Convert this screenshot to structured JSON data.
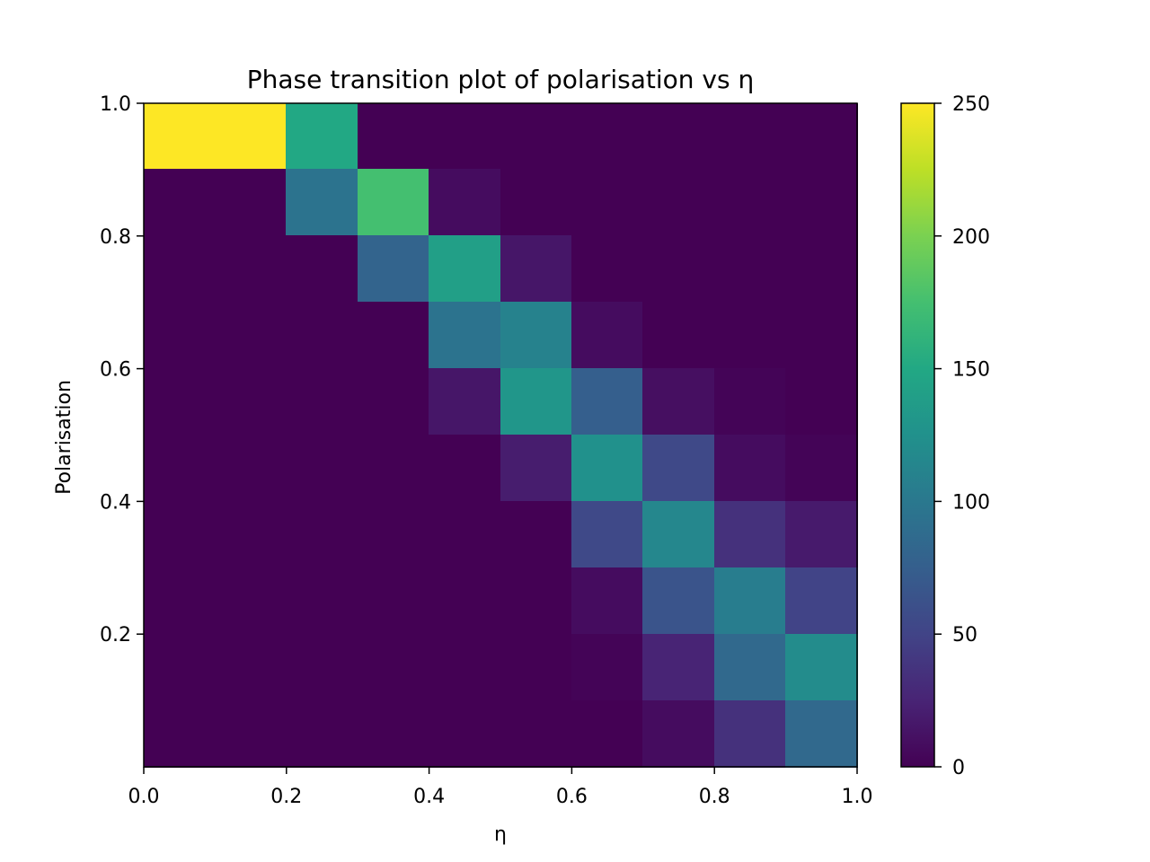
{
  "chart_data": {
    "type": "heatmap",
    "title": "Phase transition plot of polarisation vs η",
    "xlabel": "η",
    "ylabel": "Polarisation",
    "xlim": [
      0.0,
      1.0
    ],
    "ylim": [
      0.0,
      1.0
    ],
    "x_bins": 10,
    "y_bins": 10,
    "x_ticks": [
      0.0,
      0.2,
      0.4,
      0.6,
      0.8,
      1.0
    ],
    "x_tick_labels": [
      "0.0",
      "0.2",
      "0.4",
      "0.6",
      "0.8",
      "1.0"
    ],
    "y_ticks": [
      0.2,
      0.4,
      0.6,
      0.8,
      1.0
    ],
    "y_tick_labels": [
      "0.2",
      "0.4",
      "0.6",
      "0.8",
      "1.0"
    ],
    "colorbar": {
      "colormap": "viridis",
      "range": [
        0,
        250
      ],
      "ticks": [
        0,
        50,
        100,
        150,
        200,
        250
      ],
      "tick_labels": [
        "0",
        "50",
        "100",
        "150",
        "200",
        "250"
      ]
    },
    "values_row_order": "top (polarisation ~1.0) to bottom (polarisation ~0.0), columns from η 0.0 to 1.0",
    "values": [
      [
        250,
        250,
        150,
        0,
        0,
        0,
        0,
        0,
        0,
        0
      ],
      [
        0,
        0,
        95,
        175,
        8,
        0,
        0,
        0,
        0,
        0
      ],
      [
        0,
        0,
        0,
        80,
        140,
        15,
        0,
        0,
        0,
        0
      ],
      [
        0,
        0,
        0,
        0,
        95,
        110,
        8,
        0,
        0,
        0
      ],
      [
        0,
        0,
        0,
        0,
        15,
        130,
        75,
        10,
        2,
        0
      ],
      [
        0,
        0,
        0,
        0,
        0,
        20,
        125,
        55,
        8,
        2
      ],
      [
        0,
        0,
        0,
        0,
        0,
        0,
        55,
        115,
        35,
        18
      ],
      [
        0,
        0,
        0,
        0,
        0,
        0,
        8,
        65,
        105,
        50
      ],
      [
        0,
        0,
        0,
        0,
        0,
        0,
        2,
        25,
        85,
        120
      ],
      [
        0,
        0,
        0,
        0,
        0,
        0,
        0,
        8,
        35,
        85
      ]
    ]
  }
}
